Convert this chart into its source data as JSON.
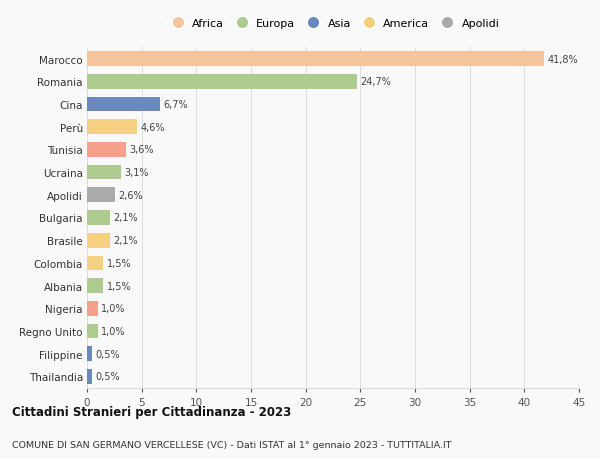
{
  "categories": [
    "Marocco",
    "Romania",
    "Cina",
    "Perù",
    "Tunisia",
    "Ucraina",
    "Apolidi",
    "Bulgaria",
    "Brasile",
    "Colombia",
    "Albania",
    "Nigeria",
    "Regno Unito",
    "Filippine",
    "Thailandia"
  ],
  "values": [
    41.8,
    24.7,
    6.7,
    4.6,
    3.6,
    3.1,
    2.6,
    2.1,
    2.1,
    1.5,
    1.5,
    1.0,
    1.0,
    0.5,
    0.5
  ],
  "labels": [
    "41,8%",
    "24,7%",
    "6,7%",
    "4,6%",
    "3,6%",
    "3,1%",
    "2,6%",
    "2,1%",
    "2,1%",
    "1,5%",
    "1,5%",
    "1,0%",
    "1,0%",
    "0,5%",
    "0,5%"
  ],
  "colors": [
    "#F5C49A",
    "#AECA8E",
    "#6B89BE",
    "#F5D080",
    "#F5A08A",
    "#AECA8E",
    "#AAAAAA",
    "#AECA8E",
    "#F5D080",
    "#F5D080",
    "#AECA8E",
    "#F5A08A",
    "#AECA8E",
    "#6B89BE",
    "#6B89BE"
  ],
  "legend_labels": [
    "Africa",
    "Europa",
    "Asia",
    "America",
    "Apolidi"
  ],
  "legend_colors": [
    "#F5C49A",
    "#AECA8E",
    "#6B89BE",
    "#F5D080",
    "#AAAAAA"
  ],
  "title": "Cittadini Stranieri per Cittadinanza - 2023",
  "subtitle": "COMUNE DI SAN GERMANO VERCELLESE (VC) - Dati ISTAT al 1° gennaio 2023 - TUTTITALIA.IT",
  "xlim": [
    0,
    45
  ],
  "xticks": [
    0,
    5,
    10,
    15,
    20,
    25,
    30,
    35,
    40,
    45
  ],
  "background_color": "#F9F9F9",
  "grid_color": "#DDDDDD",
  "bar_height": 0.65
}
